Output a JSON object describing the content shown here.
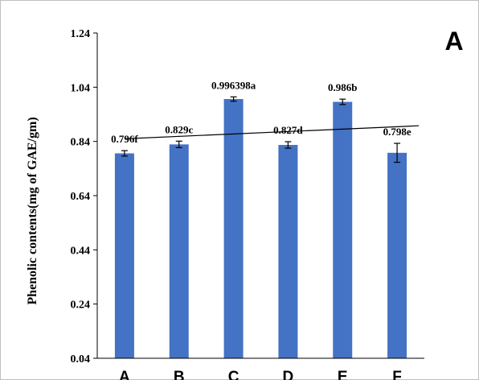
{
  "chart_data": {
    "type": "bar",
    "panel_label": "A",
    "ylabel": "Phenolic contents(mg of GAE/gm)",
    "xlabel": "",
    "categories": [
      "A",
      "B",
      "C",
      "D",
      "E",
      "F"
    ],
    "values": [
      0.796,
      0.829,
      0.996398,
      0.827,
      0.986,
      0.798
    ],
    "errors": [
      0.01,
      0.012,
      0.008,
      0.012,
      0.01,
      0.035
    ],
    "data_labels": [
      "0.796f",
      "0.829c",
      "0.996398a",
      "0.827d",
      "0.986b",
      "0.798e"
    ],
    "ylim": [
      0.04,
      1.24
    ],
    "yticks": [
      "0.04",
      "0.24",
      "0.44",
      "0.64",
      "0.84",
      "1.04",
      "1.24"
    ],
    "trendline": {
      "type": "linear",
      "visible": true
    },
    "grid": false,
    "legend": "none",
    "colors": {
      "bar": "#4472C4",
      "axis": "#000000",
      "error_bar": "#000000",
      "trendline": "#000000"
    }
  }
}
